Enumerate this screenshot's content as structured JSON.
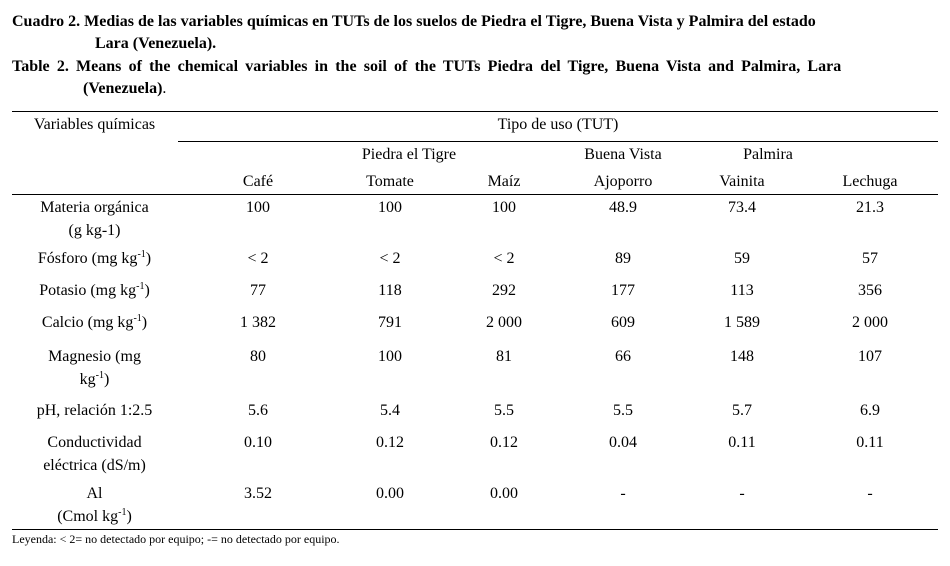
{
  "caption_es": {
    "line1": "Cuadro 2. Medias de las variables químicas en TUTs de los suelos de Piedra el Tigre, Buena Vista y Palmira del estado",
    "line2": "Lara (Venezuela)."
  },
  "caption_en": {
    "line1": "Table 2. Means of the chemical variables in the soil of the TUTs Piedra del Tigre, Buena Vista and Palmira, Lara",
    "line2": "(Venezuela)",
    "line2_suffix": "."
  },
  "table": {
    "header": {
      "variables": "Variables químicas",
      "tipo_uso": "Tipo de uso (TUT)",
      "groups": [
        "Piedra el Tigre",
        "Buena Vista",
        "Palmira"
      ],
      "columns": [
        "Café",
        "Tomate",
        "Maíz",
        "Ajoporro",
        "Vainita",
        "Lechuga"
      ]
    },
    "rows": [
      {
        "label_lines": [
          "Materia orgánica",
          "(g kg-1)"
        ],
        "values": [
          "100",
          "100",
          "100",
          "48.9",
          "73.4",
          "21.3"
        ]
      },
      {
        "label": "Fósforo (mg kg",
        "label_sup": "-1",
        "label_end": ")",
        "values": [
          "< 2",
          "< 2",
          "< 2",
          "89",
          "59",
          "57"
        ]
      },
      {
        "label": "Potasio (mg kg",
        "label_sup": "-1",
        "label_end": ")",
        "values": [
          "77",
          "118",
          "292",
          "177",
          "113",
          "356"
        ]
      },
      {
        "label": "Calcio (mg kg",
        "label_sup": "-1",
        "label_end": ")",
        "values": [
          "1 382",
          "791",
          "2 000",
          "609",
          "1 589",
          "2 000"
        ]
      },
      {
        "label_line1": "Magnesio (mg",
        "label_line2": "kg",
        "label_sup": "-1",
        "label_end": ")",
        "values": [
          "80",
          "100",
          "81",
          "66",
          "148",
          "107"
        ]
      },
      {
        "label": "pH, relación 1:2.5",
        "values": [
          "5.6",
          "5.4",
          "5.5",
          "5.5",
          "5.7",
          "6.9"
        ]
      },
      {
        "label_lines": [
          "Conductividad",
          "eléctrica (dS/m)"
        ],
        "values": [
          "0.10",
          "0.12",
          "0.12",
          "0.04",
          "0.11",
          "0.11"
        ]
      },
      {
        "label_line1": "Al",
        "label_line2": "(Cmol kg",
        "label_sup": "-1",
        "label_end": ")",
        "values": [
          "3.52",
          "0.00",
          "0.00",
          "-",
          "-",
          "-"
        ]
      }
    ]
  },
  "legend": "Leyenda: < 2= no detectado por equipo; -= no detectado por equipo."
}
